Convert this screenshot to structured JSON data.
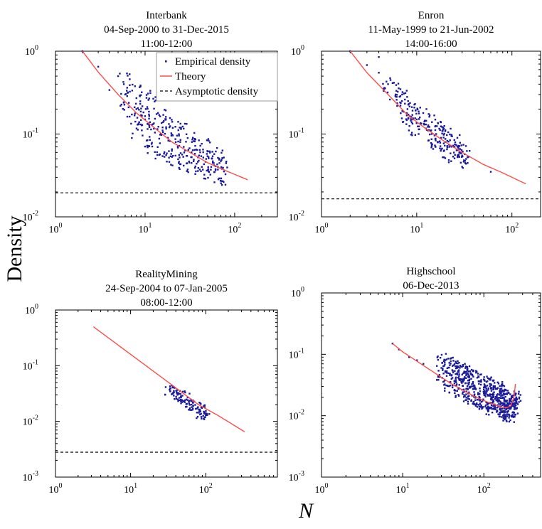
{
  "figure": {
    "ylabel": "Density",
    "xlabel": "N"
  },
  "colors": {
    "empirical": "#1a1a99",
    "theory": "#ff4d4d",
    "asymptotic": "#000000"
  },
  "legend": {
    "items": [
      "Empirical density",
      "Theory",
      "Asymptotic density"
    ],
    "placement": "top-right"
  },
  "chart_data": [
    {
      "type": "scatter",
      "title": [
        "Interbank",
        "04-Sep-2000 to 31-Dec-2015",
        "11:00-12:00"
      ],
      "xscale": "log",
      "yscale": "log",
      "xlim": [
        1,
        300
      ],
      "ylim": [
        0.01,
        1
      ],
      "xticks": [
        1,
        10,
        100
      ],
      "yticks": [
        0.01,
        0.1,
        1
      ],
      "xtick_labels": [
        [
          "10",
          "0"
        ],
        [
          "10",
          "1"
        ],
        [
          "10",
          "2"
        ]
      ],
      "ytick_labels": [
        [
          "10",
          "-2"
        ],
        [
          "10",
          "-1"
        ],
        [
          "10",
          "0"
        ]
      ],
      "legend": true,
      "asymptote": 0.0195,
      "theory": {
        "x": [
          2,
          3,
          5,
          8,
          12,
          20,
          30,
          50,
          80,
          140
        ],
        "y": [
          1.0,
          0.56,
          0.3,
          0.18,
          0.125,
          0.08,
          0.062,
          0.045,
          0.036,
          0.028
        ]
      },
      "empirical": {
        "x": [
          2,
          3,
          4,
          5,
          6,
          8,
          10,
          12,
          15,
          18,
          22,
          27,
          33,
          40,
          48,
          57,
          65,
          72
        ],
        "y": [
          1.0,
          0.65,
          0.34,
          0.5,
          0.3,
          0.2,
          0.15,
          0.13,
          0.1,
          0.09,
          0.08,
          0.07,
          0.06,
          0.055,
          0.05,
          0.045,
          0.04,
          0.038
        ],
        "spread": [
          0,
          0,
          0,
          0,
          0.3,
          0.35,
          0.35,
          0.35,
          0.3,
          0.3,
          0.3,
          0.3,
          0.25,
          0.25,
          0.25,
          0.2,
          0.2,
          0.2
        ]
      }
    },
    {
      "type": "scatter",
      "title": [
        "Enron",
        "11-May-1999 to 21-Jun-2002",
        "14:00-16:00"
      ],
      "xscale": "log",
      "yscale": "log",
      "xlim": [
        1,
        200
      ],
      "ylim": [
        0.01,
        1
      ],
      "xticks": [
        1,
        10,
        100
      ],
      "yticks": [
        0.01,
        0.1,
        1
      ],
      "xtick_labels": [
        [
          "10",
          "0"
        ],
        [
          "10",
          "1"
        ],
        [
          "10",
          "2"
        ]
      ],
      "ytick_labels": [
        [
          "10",
          "-2"
        ],
        [
          "10",
          "-1"
        ],
        [
          "10",
          "0"
        ]
      ],
      "legend": false,
      "asymptote": 0.0165,
      "theory": {
        "x": [
          2,
          3,
          5,
          8,
          12,
          20,
          30,
          50,
          80,
          140
        ],
        "y": [
          1.0,
          0.55,
          0.3,
          0.17,
          0.12,
          0.08,
          0.06,
          0.043,
          0.034,
          0.025
        ]
      },
      "empirical": {
        "x": [
          2,
          3,
          4,
          4,
          4.5,
          5,
          6,
          7,
          8,
          9,
          10,
          12,
          14,
          16,
          18,
          20,
          22,
          25,
          28,
          30,
          33,
          60
        ],
        "y": [
          1.0,
          0.68,
          0.85,
          0.55,
          0.34,
          0.4,
          0.3,
          0.25,
          0.2,
          0.17,
          0.15,
          0.13,
          0.11,
          0.1,
          0.09,
          0.08,
          0.07,
          0.07,
          0.06,
          0.055,
          0.05,
          0.035
        ],
        "spread": [
          0,
          0,
          0,
          0,
          0,
          0.1,
          0.15,
          0.15,
          0.2,
          0.2,
          0.2,
          0.2,
          0.2,
          0.2,
          0.2,
          0.2,
          0.2,
          0.15,
          0.15,
          0.15,
          0.1,
          0
        ]
      }
    },
    {
      "type": "scatter",
      "title": [
        "RealityMining",
        "24-Sep-2004 to 07-Jan-2005",
        "08:00-12:00"
      ],
      "xscale": "log",
      "yscale": "log",
      "xlim": [
        1,
        900
      ],
      "ylim": [
        0.001,
        1
      ],
      "xticks": [
        1,
        10,
        100
      ],
      "yticks": [
        0.001,
        0.01,
        0.1,
        1
      ],
      "xtick_labels": [
        [
          "10",
          "0"
        ],
        [
          "10",
          "1"
        ],
        [
          "10",
          "2"
        ]
      ],
      "ytick_labels": [
        [
          "10",
          "-3"
        ],
        [
          "10",
          "-2"
        ],
        [
          "10",
          "-1"
        ],
        [
          "10",
          "0"
        ]
      ],
      "legend": false,
      "asymptote": 0.0028,
      "theory": {
        "x": [
          3.2,
          5,
          10,
          20,
          40,
          80,
          150,
          330
        ],
        "y": [
          0.5,
          0.32,
          0.16,
          0.08,
          0.04,
          0.02,
          0.0125,
          0.0065
        ]
      },
      "empirical": {
        "x": [
          33,
          37,
          42,
          47,
          53,
          60,
          68,
          76,
          85,
          95,
          105
        ],
        "y": [
          0.037,
          0.033,
          0.03,
          0.027,
          0.024,
          0.021,
          0.019,
          0.017,
          0.015,
          0.014,
          0.013
        ],
        "spread": [
          0.12,
          0.12,
          0.12,
          0.12,
          0.12,
          0.12,
          0.12,
          0.12,
          0.12,
          0.1,
          0.08
        ]
      }
    },
    {
      "type": "scatter",
      "title": [
        "Highschool",
        "06-Dec-2013"
      ],
      "xscale": "log",
      "yscale": "log",
      "xlim": [
        1,
        500
      ],
      "ylim": [
        0.001,
        1
      ],
      "xticks": [
        1,
        10,
        100
      ],
      "yticks": [
        0.001,
        0.01,
        0.1,
        1
      ],
      "xtick_labels": [
        [
          "10",
          "0"
        ],
        [
          "10",
          "1"
        ],
        [
          "10",
          "2"
        ]
      ],
      "ytick_labels": [
        [
          "10",
          "-3"
        ],
        [
          "10",
          "-2"
        ],
        [
          "10",
          "-1"
        ],
        [
          "10",
          "0"
        ]
      ],
      "legend": false,
      "asymptote": null,
      "theory": {
        "x": [
          7.5,
          10,
          20,
          40,
          80,
          120,
          160,
          190,
          215,
          235,
          245
        ],
        "y": [
          0.15,
          0.11,
          0.06,
          0.033,
          0.02,
          0.016,
          0.014,
          0.0135,
          0.0145,
          0.02,
          0.033
        ]
      },
      "empirical": {
        "x": [
          7.5,
          9,
          12,
          15,
          18,
          30,
          35,
          40,
          45,
          50,
          55,
          60,
          65,
          70,
          80,
          90,
          100,
          110,
          120,
          130,
          140,
          150,
          160,
          170,
          180,
          190,
          200,
          210,
          220,
          230,
          240,
          250
        ],
        "y": [
          0.15,
          0.12,
          0.09,
          0.08,
          0.07,
          0.06,
          0.05,
          0.045,
          0.04,
          0.038,
          0.036,
          0.034,
          0.032,
          0.03,
          0.027,
          0.025,
          0.023,
          0.022,
          0.021,
          0.02,
          0.019,
          0.018,
          0.017,
          0.016,
          0.016,
          0.015,
          0.014,
          0.014,
          0.015,
          0.016,
          0.018,
          0.02
        ],
        "spread": [
          0,
          0,
          0,
          0,
          0,
          0.25,
          0.3,
          0.3,
          0.3,
          0.3,
          0.3,
          0.3,
          0.3,
          0.3,
          0.3,
          0.3,
          0.3,
          0.3,
          0.3,
          0.3,
          0.3,
          0.3,
          0.3,
          0.3,
          0.25,
          0.25,
          0.25,
          0.25,
          0.2,
          0.2,
          0.15,
          0.1
        ]
      }
    }
  ]
}
